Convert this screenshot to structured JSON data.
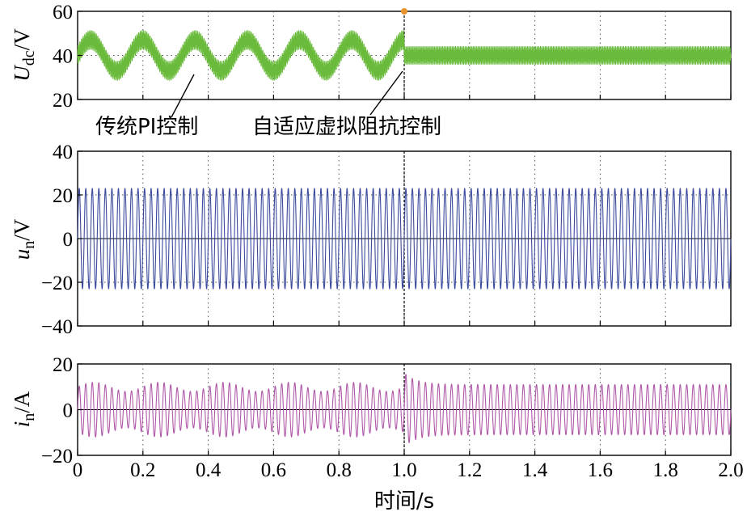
{
  "chart_data": [
    {
      "type": "line",
      "panel": "top",
      "ylabel_main": "U",
      "ylabel_sub": "dc",
      "ylabel_unit": "/V",
      "ylim": [
        20,
        60
      ],
      "yticks": [
        "20",
        "40",
        "60"
      ],
      "xlim": [
        0,
        2.0
      ],
      "grid": true,
      "color": "#6abb3c",
      "series": [
        {
          "segment": "0–1.0 s",
          "mean": 40,
          "envelope_amplitude": 7,
          "envelope_period_s": 0.16,
          "ripple_amplitude": 5
        },
        {
          "segment": "1.0–2.0 s",
          "mean": 40,
          "ripple_amplitude": 5
        }
      ],
      "annotations": [
        {
          "text": "传统PI控制",
          "points_to": [
            0.33,
            32
          ]
        },
        {
          "text": "自适应虚拟阻抗控制",
          "points_to": [
            1.0,
            36
          ]
        }
      ]
    },
    {
      "type": "line",
      "panel": "middle",
      "ylabel_main": "u",
      "ylabel_sub": "n",
      "ylabel_unit": "/V",
      "ylim": [
        -40,
        40
      ],
      "yticks": [
        "−40",
        "−20",
        "0",
        "20",
        "40"
      ],
      "xlim": [
        0,
        2.0
      ],
      "grid": true,
      "color": "#3b4a9c",
      "series": [
        {
          "segment": "0–2.0 s",
          "amplitude": 23,
          "oscillation_period_s": 0.02
        }
      ]
    },
    {
      "type": "line",
      "panel": "bottom",
      "ylabel_main": "i",
      "ylabel_sub": "n",
      "ylabel_unit": "/A",
      "ylim": [
        -20,
        20
      ],
      "yticks": [
        "−20",
        "0",
        "20"
      ],
      "xlim": [
        0,
        2.0
      ],
      "xticks": [
        "0",
        "0.2",
        "0.4",
        "0.6",
        "0.8",
        "1.0",
        "1.2",
        "1.4",
        "1.6",
        "1.8",
        "2.0"
      ],
      "xlabel": "时间/s",
      "grid": true,
      "color": "#b058a8",
      "series": [
        {
          "segment": "0–1.0 s",
          "amplitude": 10,
          "beat_amplitude": 2
        },
        {
          "segment": "1.0–2.0 s",
          "amplitude": 11,
          "transient_peak": 16
        }
      ]
    }
  ]
}
